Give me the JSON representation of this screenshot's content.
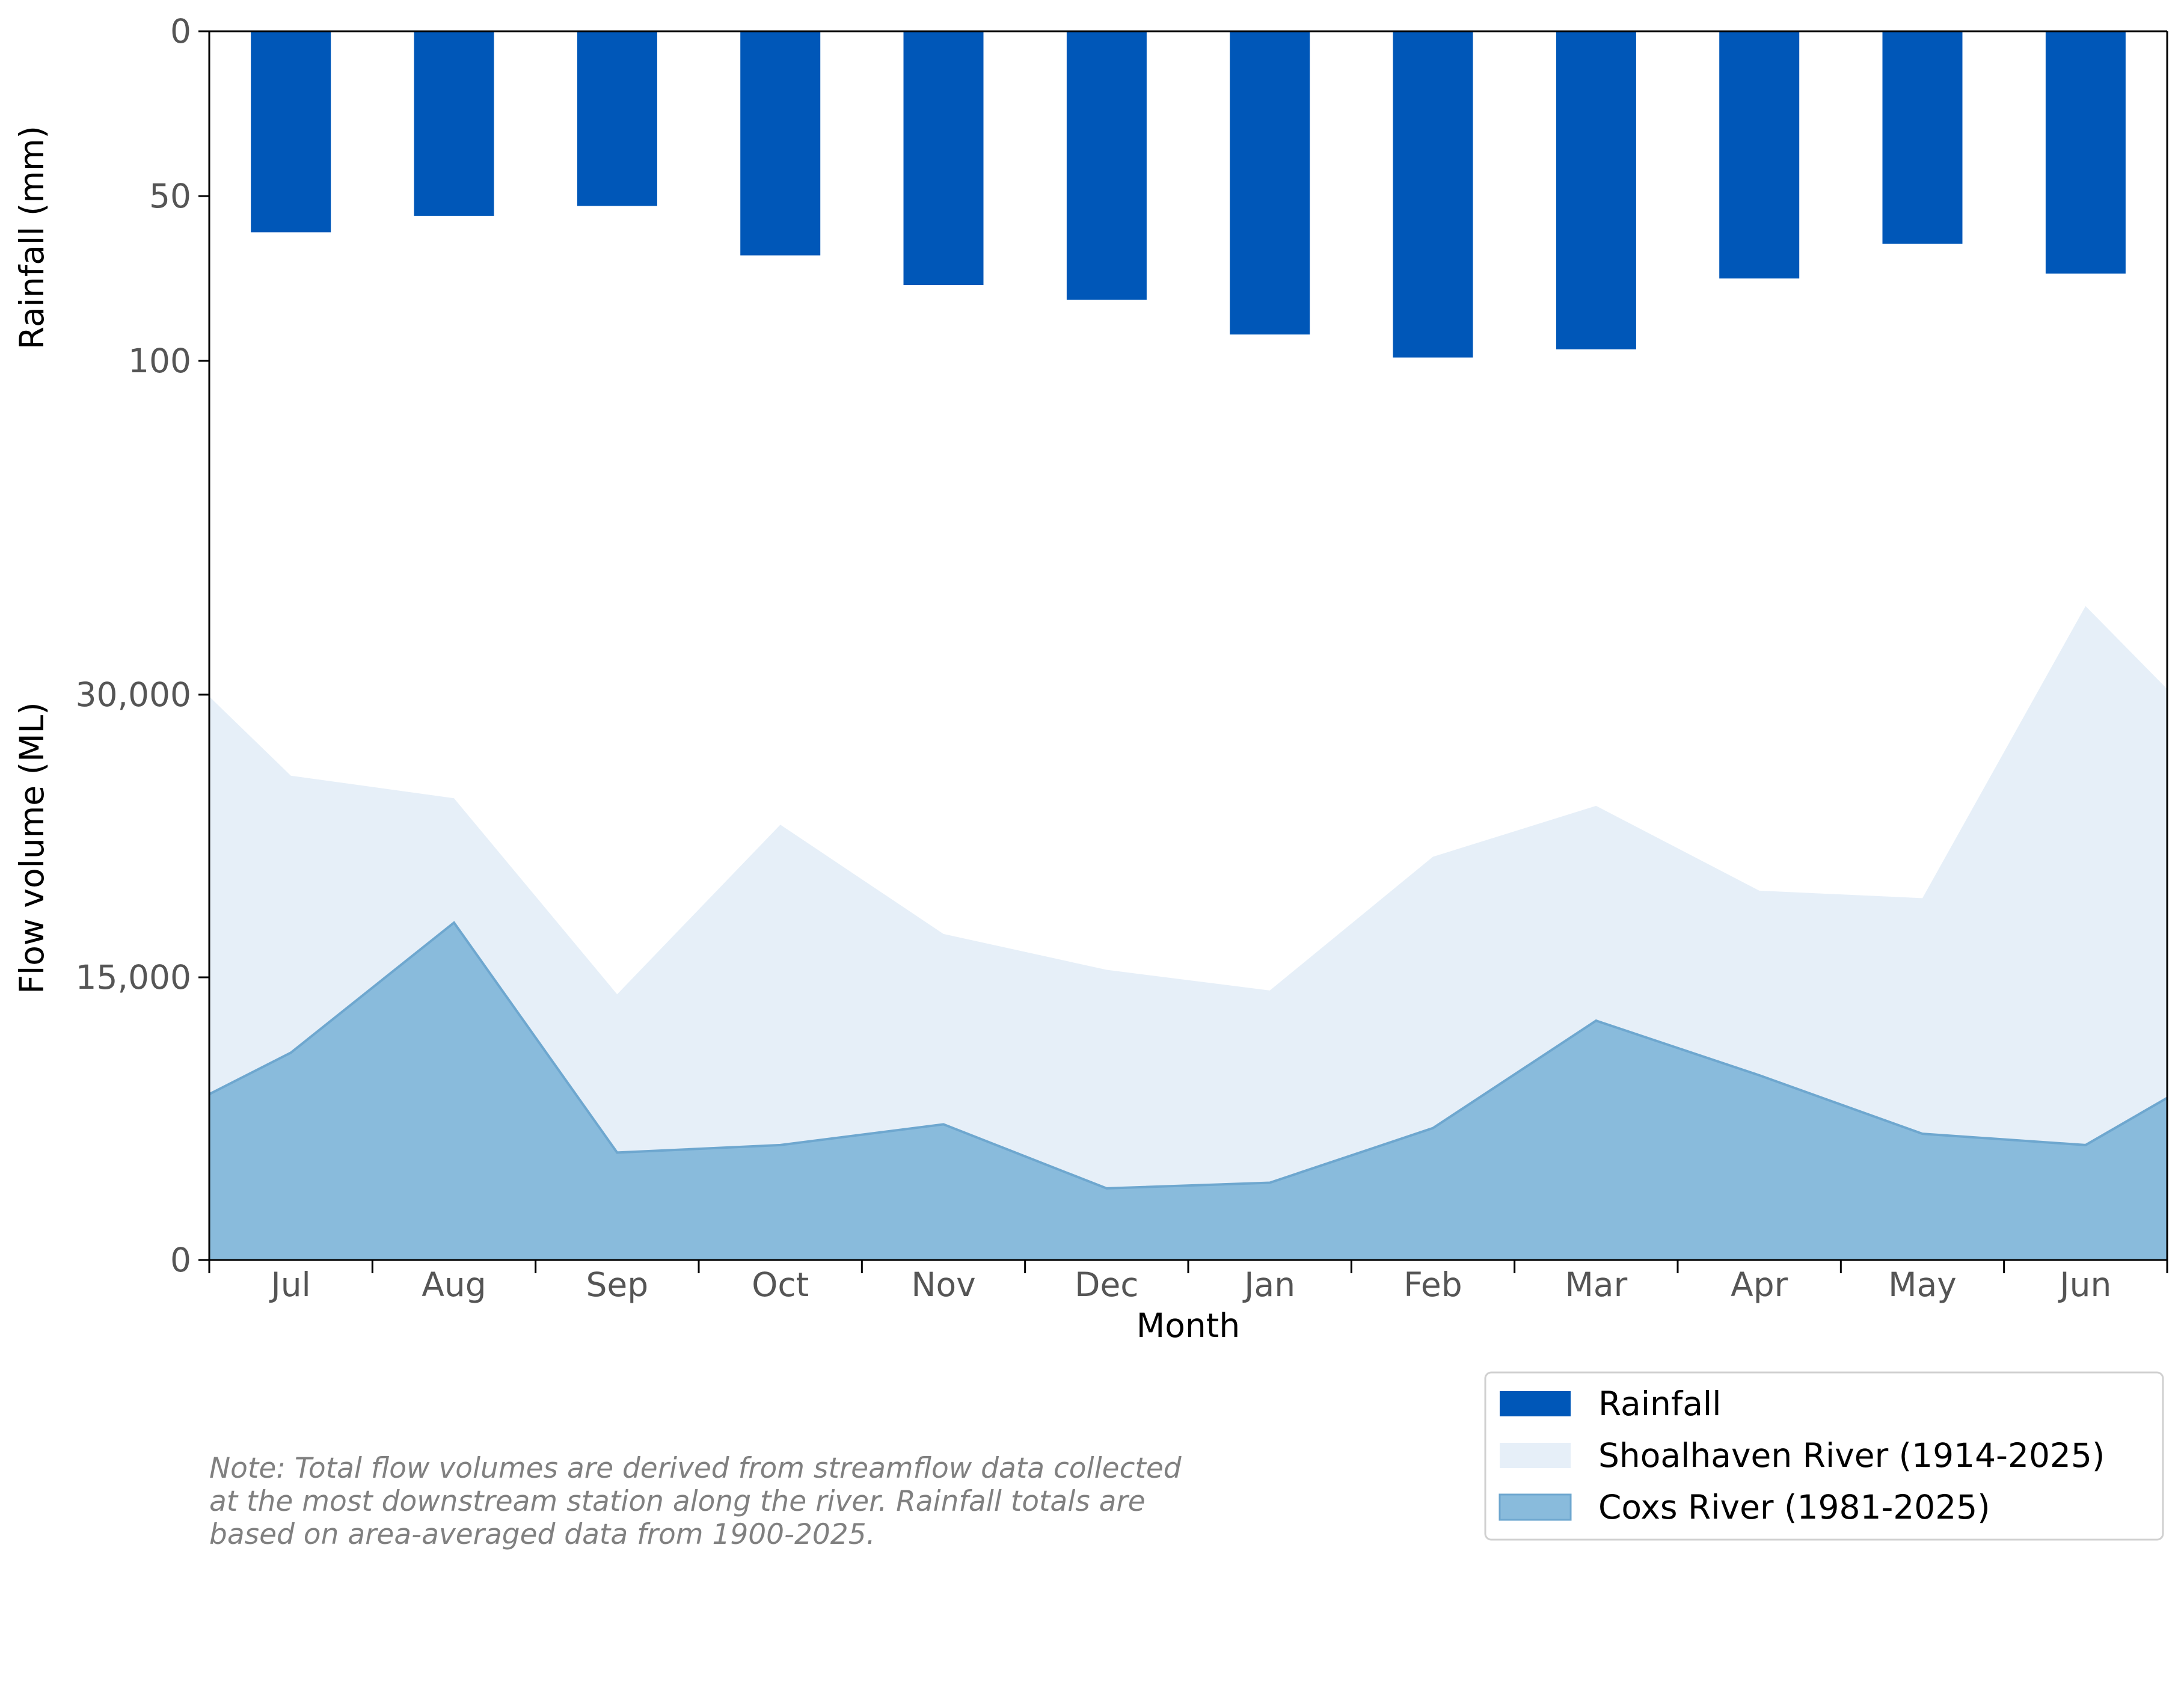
{
  "chart_data": {
    "type": "bar+area",
    "categories": [
      "Jul",
      "Aug",
      "Sep",
      "Oct",
      "Nov",
      "Dec",
      "Jan",
      "Feb",
      "Mar",
      "Apr",
      "May",
      "Jun"
    ],
    "xlabel": "Month",
    "rainfall": {
      "name": "Rainfall",
      "ylabel": "Rainfall (mm)",
      "ylim": [
        0,
        100
      ],
      "inverted": true,
      "yticks": [
        0,
        50,
        100
      ],
      "ytick_labels": [
        "0",
        "50",
        "100"
      ],
      "values": [
        61,
        56,
        53,
        68,
        77,
        81.5,
        92,
        99,
        96.5,
        75,
        64.5,
        73.5
      ],
      "color": "#0057b8"
    },
    "flow": {
      "ylabel": "Flow volume (ML)",
      "ylim": [
        0,
        30000
      ],
      "yticks": [
        0,
        15000,
        30000
      ],
      "ytick_labels": [
        "0",
        "15,000",
        "30,000"
      ],
      "x_start_value": {
        "Shoalhaven River (1914-2025)": 29900,
        "Coxs River (1981-2025)": 8800
      },
      "x_end_value": {
        "Shoalhaven River (1914-2025)": 30300,
        "Coxs River (1981-2025)": 8600
      },
      "series": [
        {
          "name": "Shoalhaven River (1914-2025)",
          "values": [
            25700,
            24500,
            14100,
            23100,
            17300,
            15400,
            14300,
            21400,
            24100,
            19600,
            19200,
            34700
          ],
          "color": "#e6eff8"
        },
        {
          "name": "Coxs River (1981-2025)",
          "values": [
            11000,
            17900,
            5700,
            6100,
            7200,
            3800,
            4100,
            7000,
            12700,
            9800,
            6700,
            6100
          ],
          "color": "#89bbdc",
          "stroke": "#6ea7cf"
        }
      ]
    },
    "legend": {
      "placement": "bottom-right",
      "entries": [
        "Rainfall",
        "Shoalhaven River (1914-2025)",
        "Coxs River (1981-2025)"
      ]
    },
    "note": [
      "Note: Total flow volumes are derived from streamflow data collected",
      "at the most downstream station along the river. Rainfall totals are",
      "based on area-averaged data from 1900-2025."
    ],
    "grid": false
  }
}
